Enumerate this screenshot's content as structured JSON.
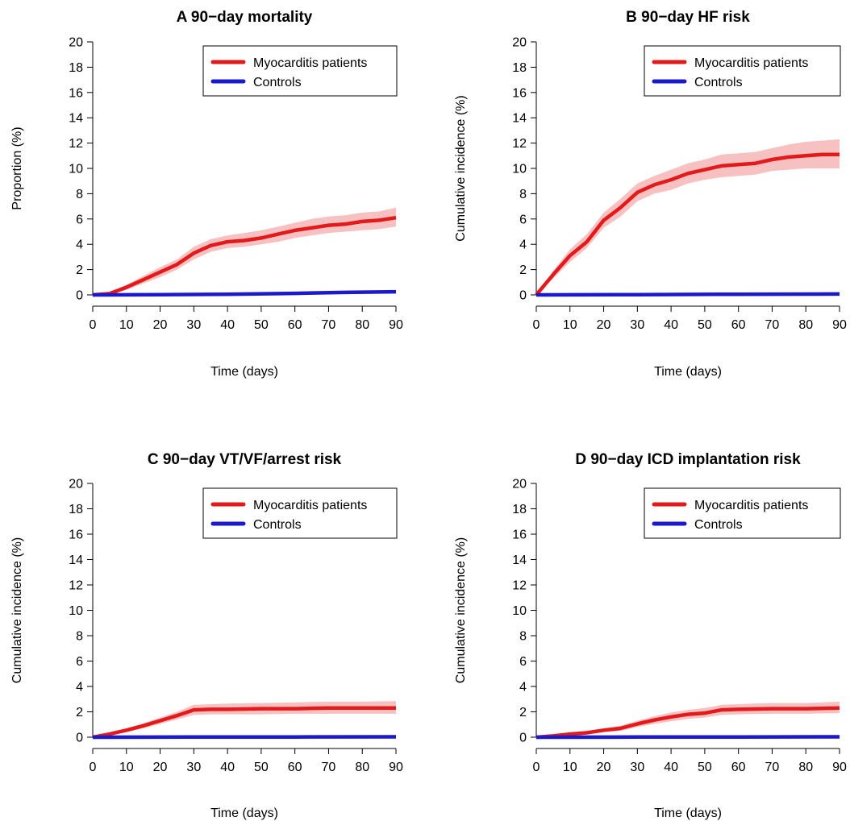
{
  "chart_data": [
    {
      "type": "line",
      "title": "A  90−day mortality",
      "xlabel": "Time (days)",
      "ylabel": "Proportion (%)",
      "xlim": [
        0,
        90
      ],
      "ylim": [
        0,
        20
      ],
      "xticks": [
        0,
        10,
        20,
        30,
        40,
        50,
        60,
        70,
        80,
        90
      ],
      "yticks": [
        0,
        2,
        4,
        6,
        8,
        10,
        12,
        14,
        16,
        18,
        20
      ],
      "grid": false,
      "legend_position": "top-right",
      "series": [
        {
          "name": "Myocarditis patients",
          "color": "#e31a1c",
          "band_color": "#f7b6b6",
          "x": [
            0,
            5,
            10,
            15,
            20,
            25,
            30,
            35,
            40,
            45,
            50,
            55,
            60,
            65,
            70,
            75,
            80,
            85,
            90
          ],
          "y": [
            0,
            0.1,
            0.6,
            1.2,
            1.8,
            2.4,
            3.3,
            3.9,
            4.2,
            4.3,
            4.5,
            4.8,
            5.1,
            5.3,
            5.5,
            5.6,
            5.8,
            5.9,
            6.1
          ],
          "lower": [
            0,
            0.0,
            0.4,
            0.9,
            1.4,
            2.0,
            2.8,
            3.4,
            3.7,
            3.8,
            4.0,
            4.2,
            4.5,
            4.7,
            4.9,
            5.0,
            5.1,
            5.2,
            5.4
          ],
          "upper": [
            0,
            0.2,
            0.8,
            1.5,
            2.2,
            2.8,
            3.8,
            4.4,
            4.7,
            4.9,
            5.1,
            5.4,
            5.7,
            6.0,
            6.2,
            6.3,
            6.5,
            6.6,
            6.9
          ]
        },
        {
          "name": "Controls",
          "color": "#1a1acc",
          "x": [
            0,
            20,
            40,
            60,
            75,
            90
          ],
          "y": [
            0,
            0.02,
            0.05,
            0.12,
            0.2,
            0.25
          ]
        }
      ]
    },
    {
      "type": "line",
      "title": "B  90−day HF risk",
      "xlabel": "Time (days)",
      "ylabel": "Cumulative incidence (%)",
      "xlim": [
        0,
        90
      ],
      "ylim": [
        0,
        20
      ],
      "xticks": [
        0,
        10,
        20,
        30,
        40,
        50,
        60,
        70,
        80,
        90
      ],
      "yticks": [
        0,
        2,
        4,
        6,
        8,
        10,
        12,
        14,
        16,
        18,
        20
      ],
      "grid": false,
      "legend_position": "top-right",
      "series": [
        {
          "name": "Myocarditis patients",
          "color": "#e31a1c",
          "band_color": "#f7b6b6",
          "x": [
            0,
            5,
            10,
            15,
            20,
            25,
            30,
            35,
            40,
            45,
            50,
            55,
            60,
            65,
            70,
            75,
            80,
            85,
            90
          ],
          "y": [
            0,
            1.6,
            3.1,
            4.2,
            5.9,
            6.9,
            8.1,
            8.7,
            9.1,
            9.6,
            9.9,
            10.2,
            10.3,
            10.4,
            10.7,
            10.9,
            11.0,
            11.1,
            11.1
          ],
          "lower": [
            0,
            1.3,
            2.6,
            3.7,
            5.3,
            6.2,
            7.4,
            8.0,
            8.3,
            8.8,
            9.1,
            9.3,
            9.4,
            9.5,
            9.8,
            9.9,
            10.0,
            10.0,
            10.0
          ],
          "upper": [
            0,
            1.9,
            3.6,
            4.8,
            6.5,
            7.6,
            8.8,
            9.4,
            9.9,
            10.4,
            10.7,
            11.1,
            11.2,
            11.3,
            11.6,
            11.9,
            12.1,
            12.2,
            12.3
          ]
        },
        {
          "name": "Controls",
          "color": "#1a1acc",
          "x": [
            0,
            30,
            60,
            90
          ],
          "y": [
            0,
            0.02,
            0.05,
            0.07
          ]
        }
      ]
    },
    {
      "type": "line",
      "title": "C  90−day VT/VF/arrest risk",
      "xlabel": "Time (days)",
      "ylabel": "Cumulative incidence (%)",
      "xlim": [
        0,
        90
      ],
      "ylim": [
        0,
        20
      ],
      "xticks": [
        0,
        10,
        20,
        30,
        40,
        50,
        60,
        70,
        80,
        90
      ],
      "yticks": [
        0,
        2,
        4,
        6,
        8,
        10,
        12,
        14,
        16,
        18,
        20
      ],
      "grid": false,
      "legend_position": "top-right",
      "series": [
        {
          "name": "Myocarditis patients",
          "color": "#e31a1c",
          "band_color": "#f7b6b6",
          "x": [
            0,
            5,
            10,
            15,
            20,
            25,
            30,
            35,
            40,
            50,
            60,
            70,
            80,
            90
          ],
          "y": [
            0,
            0.25,
            0.55,
            0.9,
            1.3,
            1.7,
            2.15,
            2.2,
            2.2,
            2.25,
            2.25,
            2.3,
            2.3,
            2.3
          ],
          "lower": [
            0,
            0.15,
            0.4,
            0.7,
            1.05,
            1.4,
            1.75,
            1.8,
            1.8,
            1.8,
            1.85,
            1.85,
            1.85,
            1.85
          ],
          "upper": [
            0,
            0.35,
            0.7,
            1.1,
            1.55,
            2.0,
            2.55,
            2.6,
            2.65,
            2.7,
            2.75,
            2.8,
            2.8,
            2.85
          ]
        },
        {
          "name": "Controls",
          "color": "#1a1acc",
          "x": [
            0,
            30,
            60,
            90
          ],
          "y": [
            0,
            0.01,
            0.02,
            0.03
          ]
        }
      ]
    },
    {
      "type": "line",
      "title": "D  90−day ICD implantation risk",
      "xlabel": "Time (days)",
      "ylabel": "Cumulative incidence (%)",
      "xlim": [
        0,
        90
      ],
      "ylim": [
        0,
        20
      ],
      "xticks": [
        0,
        10,
        20,
        30,
        40,
        50,
        60,
        70,
        80,
        90
      ],
      "yticks": [
        0,
        2,
        4,
        6,
        8,
        10,
        12,
        14,
        16,
        18,
        20
      ],
      "grid": false,
      "legend_position": "top-right",
      "series": [
        {
          "name": "Myocarditis patients",
          "color": "#e31a1c",
          "band_color": "#f7b6b6",
          "x": [
            0,
            5,
            10,
            15,
            20,
            25,
            30,
            35,
            40,
            45,
            50,
            55,
            60,
            70,
            80,
            90
          ],
          "y": [
            0,
            0.1,
            0.25,
            0.35,
            0.55,
            0.7,
            1.05,
            1.35,
            1.6,
            1.8,
            1.9,
            2.15,
            2.2,
            2.25,
            2.25,
            2.3
          ],
          "lower": [
            0,
            0.05,
            0.15,
            0.25,
            0.4,
            0.5,
            0.8,
            1.05,
            1.25,
            1.45,
            1.55,
            1.75,
            1.8,
            1.85,
            1.85,
            1.9
          ],
          "upper": [
            0,
            0.15,
            0.35,
            0.5,
            0.7,
            0.9,
            1.3,
            1.65,
            1.95,
            2.15,
            2.3,
            2.55,
            2.6,
            2.7,
            2.7,
            2.8
          ]
        },
        {
          "name": "Controls",
          "color": "#1a1acc",
          "x": [
            0,
            30,
            60,
            90
          ],
          "y": [
            0,
            0.01,
            0.02,
            0.03
          ]
        }
      ]
    }
  ]
}
